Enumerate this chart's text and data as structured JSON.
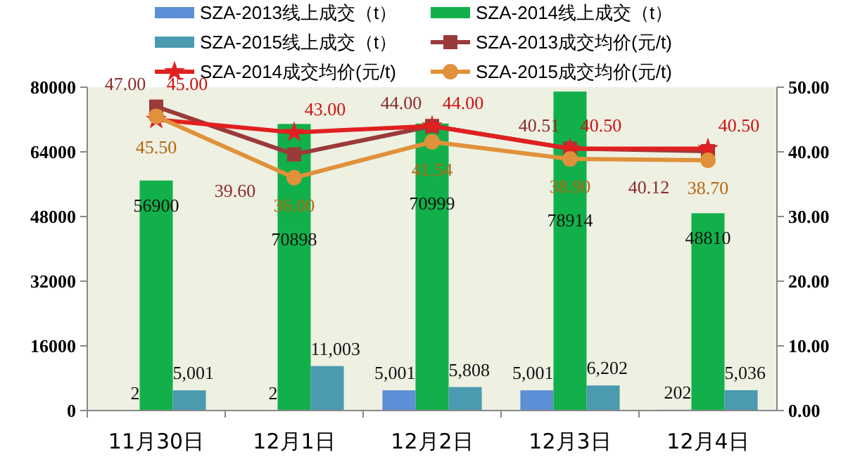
{
  "chart_data": {
    "type": "bar",
    "categories": [
      "11月30日",
      "12月1日",
      "12月2日",
      "12月3日",
      "12月4日"
    ],
    "series": [
      {
        "name": "SZA-2013线上成交（t）",
        "color": "#5b8fd6",
        "values": [
          2,
          2,
          5001,
          5001,
          202
        ],
        "value_labels": [
          "2",
          "2",
          "5,001",
          "5,001",
          "202"
        ]
      },
      {
        "name": "SZA-2014线上成交（t）",
        "color": "#12b04a",
        "values": [
          56900,
          70898,
          70999,
          78914,
          48810
        ],
        "value_labels": [
          "56900",
          "70898",
          "70999",
          "78914",
          "48810"
        ]
      },
      {
        "name": "SZA-2015线上成交（t）",
        "color": "#4a9ab0",
        "values": [
          5001,
          11003,
          5808,
          6202,
          5036
        ],
        "value_labels": [
          "5,001",
          "11,003",
          "5,808",
          "6,202",
          "5,036"
        ]
      },
      {
        "name": "SZA-2013成交均价(元/t)",
        "type": "line",
        "axis": "y2",
        "marker": "square",
        "color": "#9b3a3a",
        "values": [
          47.0,
          39.6,
          44.0,
          40.51,
          40.12
        ],
        "value_labels": [
          "47.00",
          "39.60",
          "44.00",
          "40.51",
          "40.12"
        ]
      },
      {
        "name": "SZA-2014成交均价(元/t)",
        "type": "line",
        "axis": "y2",
        "marker": "star",
        "color": "#e02020",
        "values": [
          45.0,
          43.0,
          44.0,
          40.5,
          40.5
        ],
        "value_labels": [
          "45.00",
          "43.00",
          "44.00",
          "40.50",
          "40.50"
        ]
      },
      {
        "name": "SZA-2015成交均价(元/t)",
        "type": "line",
        "axis": "y2",
        "marker": "circle",
        "color": "#e0913a",
        "values": [
          45.5,
          36.0,
          41.54,
          38.9,
          38.7
        ],
        "value_labels": [
          "45.50",
          "36.00",
          "41.54",
          "38.90",
          "38.70"
        ]
      }
    ],
    "ylim": [
      0,
      80000
    ],
    "yticks": [
      0,
      16000,
      32000,
      48000,
      64000,
      80000
    ],
    "y2lim": [
      0,
      50
    ],
    "y2ticks": [
      {
        "value": 0,
        "label": "0.00"
      },
      {
        "value": 10,
        "label": "10.00"
      },
      {
        "value": 20,
        "label": "20.00"
      },
      {
        "value": 30,
        "label": "30.00"
      },
      {
        "value": 40,
        "label": "40.00"
      },
      {
        "value": 50,
        "label": "50.00"
      }
    ],
    "data_labels": true,
    "legend": "top",
    "grid": false
  }
}
